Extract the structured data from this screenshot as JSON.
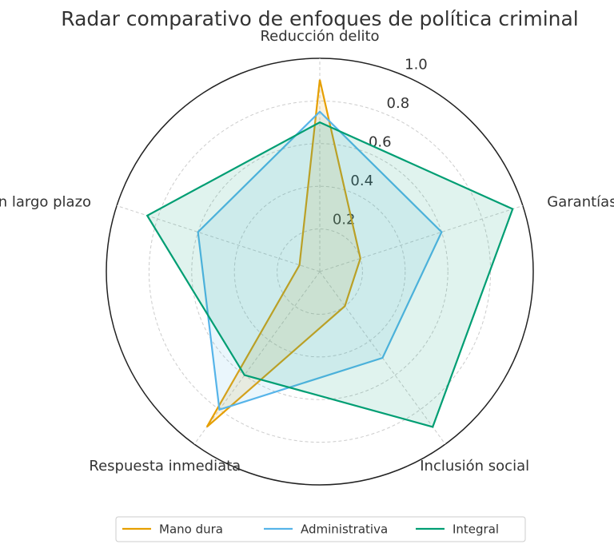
{
  "chart_data": {
    "type": "radar",
    "title": "Radar comparativo de enfoques de política criminal",
    "categories": [
      "Reducción delito",
      "Garantías",
      "Inclusión social",
      "Respuesta inmediata",
      "Prevención largo plazo"
    ],
    "series": [
      {
        "name": "Mano dura",
        "color": "#E69F00",
        "values": [
          0.9,
          0.2,
          0.2,
          0.9,
          0.1
        ]
      },
      {
        "name": "Administrativa",
        "color": "#56B4E9",
        "values": [
          0.75,
          0.6,
          0.5,
          0.8,
          0.6
        ]
      },
      {
        "name": "Integral",
        "color": "#009E73",
        "values": [
          0.7,
          0.95,
          0.9,
          0.6,
          0.85
        ]
      }
    ],
    "ylim": [
      0,
      1.0
    ],
    "yticks": [
      0.2,
      0.4,
      0.6,
      0.8,
      {
        "value": 1.0,
        "label": "1.0"
      }
    ],
    "grid": true,
    "legend": "bottom"
  }
}
